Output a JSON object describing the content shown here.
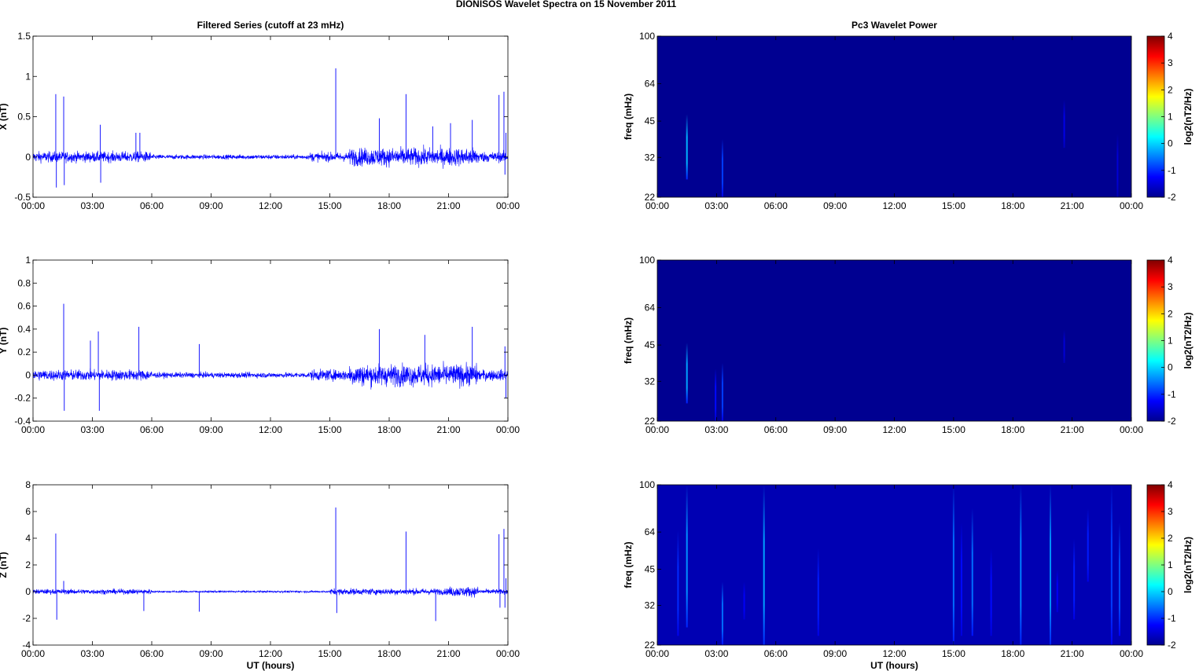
{
  "figure_title": "DIONISOS Wavelet Spectra on 15 November  2011",
  "chart_data": [
    {
      "type": "line",
      "title": "Filtered Series (cutoff at 23 mHz)",
      "ylabel": "X (nT)",
      "xlabel": "",
      "ylim": [
        -0.5,
        1.5
      ],
      "yticks": [
        "-0.5",
        "0",
        "0.5",
        "1",
        "1.5"
      ],
      "xticks": [
        "00:00",
        "03:00",
        "06:00",
        "09:00",
        "12:00",
        "15:00",
        "18:00",
        "21:00",
        "00:00"
      ],
      "xlim": [
        0,
        24
      ],
      "color": "#0000ff",
      "baseline_amp": 0.05,
      "activity": [
        {
          "from": 0.0,
          "to": 6.0,
          "amp": 0.07
        },
        {
          "from": 6.0,
          "to": 14.0,
          "amp": 0.03
        },
        {
          "from": 14.0,
          "to": 16.0,
          "amp": 0.06
        },
        {
          "from": 16.0,
          "to": 22.5,
          "amp": 0.12
        },
        {
          "from": 22.5,
          "to": 24.0,
          "amp": 0.07
        }
      ],
      "spikes": [
        {
          "t": 1.15,
          "v": 0.78
        },
        {
          "t": 1.18,
          "v": -0.38
        },
        {
          "t": 1.55,
          "v": 0.75
        },
        {
          "t": 1.58,
          "v": -0.35
        },
        {
          "t": 3.4,
          "v": 0.4
        },
        {
          "t": 3.42,
          "v": -0.32
        },
        {
          "t": 5.2,
          "v": 0.3
        },
        {
          "t": 5.4,
          "v": 0.3
        },
        {
          "t": 15.3,
          "v": 1.1
        },
        {
          "t": 17.5,
          "v": 0.48
        },
        {
          "t": 18.85,
          "v": 0.78
        },
        {
          "t": 20.2,
          "v": 0.38
        },
        {
          "t": 21.1,
          "v": 0.42
        },
        {
          "t": 22.2,
          "v": 0.46
        },
        {
          "t": 23.55,
          "v": 0.77
        },
        {
          "t": 23.8,
          "v": 0.81
        },
        {
          "t": 23.9,
          "v": 0.3
        },
        {
          "t": 23.85,
          "v": -0.22
        }
      ]
    },
    {
      "type": "heatmap",
      "title": "Pc3 Wavelet Power",
      "ylabel": "freq (mHz)",
      "xlabel": "",
      "yticks": [
        "22",
        "32",
        "45",
        "64",
        "100"
      ],
      "ytick_values": [
        22,
        32,
        45,
        64,
        100
      ],
      "yscale": "log",
      "xticks": [
        "00:00",
        "03:00",
        "06:00",
        "09:00",
        "12:00",
        "15:00",
        "18:00",
        "21:00",
        "00:00"
      ],
      "xlim": [
        0,
        24
      ],
      "colorbar_label": "log2(nT2/Hz)",
      "colorbar_ticks": [
        "-2",
        "-1",
        "0",
        "1",
        "2",
        "3",
        "4"
      ],
      "clim": [
        -2,
        4
      ],
      "background_level": -1.9,
      "bursts": [
        {
          "t": 1.5,
          "f_low": 26,
          "f_high": 48,
          "level": -0.2
        },
        {
          "t": 3.3,
          "f_low": 22,
          "f_high": 38,
          "level": -0.9
        },
        {
          "t": 20.6,
          "f_low": 35,
          "f_high": 55,
          "level": -1.4
        },
        {
          "t": 23.3,
          "f_low": 22,
          "f_high": 40,
          "level": -1.5
        }
      ]
    },
    {
      "type": "line",
      "title": "",
      "ylabel": "Y (nT)",
      "xlabel": "",
      "ylim": [
        -0.4,
        1.0
      ],
      "yticks": [
        "-0.4",
        "-0.2",
        "0",
        "0.2",
        "0.4",
        "0.6",
        "0.8",
        "1"
      ],
      "xticks": [
        "00:00",
        "03:00",
        "06:00",
        "09:00",
        "12:00",
        "15:00",
        "18:00",
        "21:00",
        "00:00"
      ],
      "xlim": [
        0,
        24
      ],
      "color": "#0000ff",
      "activity": [
        {
          "from": 0.0,
          "to": 6.0,
          "amp": 0.05
        },
        {
          "from": 6.0,
          "to": 14.0,
          "amp": 0.025
        },
        {
          "from": 14.0,
          "to": 16.0,
          "amp": 0.05
        },
        {
          "from": 16.0,
          "to": 22.5,
          "amp": 0.1
        },
        {
          "from": 22.5,
          "to": 24.0,
          "amp": 0.05
        }
      ],
      "spikes": [
        {
          "t": 1.55,
          "v": 0.62
        },
        {
          "t": 1.58,
          "v": -0.31
        },
        {
          "t": 3.3,
          "v": 0.38
        },
        {
          "t": 3.35,
          "v": -0.31
        },
        {
          "t": 2.9,
          "v": 0.3
        },
        {
          "t": 5.35,
          "v": 0.42
        },
        {
          "t": 8.4,
          "v": 0.27
        },
        {
          "t": 17.5,
          "v": 0.4
        },
        {
          "t": 19.8,
          "v": 0.35
        },
        {
          "t": 22.2,
          "v": 0.42
        },
        {
          "t": 23.85,
          "v": 0.25
        },
        {
          "t": 23.9,
          "v": -0.2
        }
      ]
    },
    {
      "type": "heatmap",
      "title": "",
      "ylabel": "freq (mHz)",
      "xlabel": "",
      "yticks": [
        "22",
        "32",
        "45",
        "64",
        "100"
      ],
      "ytick_values": [
        22,
        32,
        45,
        64,
        100
      ],
      "yscale": "log",
      "xticks": [
        "00:00",
        "03:00",
        "06:00",
        "09:00",
        "12:00",
        "15:00",
        "18:00",
        "21:00",
        "00:00"
      ],
      "xlim": [
        0,
        24
      ],
      "colorbar_label": "log2(nT2/Hz)",
      "colorbar_ticks": [
        "-2",
        "-1",
        "0",
        "1",
        "2",
        "3",
        "4"
      ],
      "clim": [
        -2,
        4
      ],
      "background_level": -1.9,
      "bursts": [
        {
          "t": 1.5,
          "f_low": 26,
          "f_high": 46,
          "level": -0.3
        },
        {
          "t": 2.95,
          "f_low": 22,
          "f_high": 36,
          "level": -1.2
        },
        {
          "t": 3.3,
          "f_low": 22,
          "f_high": 38,
          "level": -0.9
        },
        {
          "t": 20.6,
          "f_low": 38,
          "f_high": 52,
          "level": -1.5
        }
      ]
    },
    {
      "type": "line",
      "title": "",
      "ylabel": "Z (nT)",
      "xlabel": "UT (hours)",
      "ylim": [
        -4,
        8
      ],
      "yticks": [
        "-4",
        "-2",
        "0",
        "2",
        "4",
        "6",
        "8"
      ],
      "xticks": [
        "00:00",
        "03:00",
        "06:00",
        "09:00",
        "12:00",
        "15:00",
        "18:00",
        "21:00",
        "00:00"
      ],
      "xlim": [
        0,
        24
      ],
      "color": "#0000ff",
      "activity": [
        {
          "from": 0.0,
          "to": 6.0,
          "amp": 0.2
        },
        {
          "from": 6.0,
          "to": 15.0,
          "amp": 0.08
        },
        {
          "from": 15.0,
          "to": 21.0,
          "amp": 0.25
        },
        {
          "from": 21.0,
          "to": 22.5,
          "amp": 0.4
        },
        {
          "from": 22.5,
          "to": 24.0,
          "amp": 0.2
        }
      ],
      "spikes": [
        {
          "t": 1.15,
          "v": 4.35
        },
        {
          "t": 1.2,
          "v": -2.1
        },
        {
          "t": 1.55,
          "v": 0.8
        },
        {
          "t": 5.6,
          "v": -1.45
        },
        {
          "t": 8.4,
          "v": -1.5
        },
        {
          "t": 15.3,
          "v": 6.3
        },
        {
          "t": 15.35,
          "v": -1.6
        },
        {
          "t": 18.85,
          "v": 4.5
        },
        {
          "t": 20.35,
          "v": -2.2
        },
        {
          "t": 23.55,
          "v": 4.3
        },
        {
          "t": 23.6,
          "v": -1.2
        },
        {
          "t": 23.8,
          "v": 4.7
        },
        {
          "t": 23.85,
          "v": -1.2
        },
        {
          "t": 23.9,
          "v": 1.0
        }
      ]
    },
    {
      "type": "heatmap",
      "title": "",
      "ylabel": "freq (mHz)",
      "xlabel": "UT (hours)",
      "yticks": [
        "22",
        "32",
        "45",
        "64",
        "100"
      ],
      "ytick_values": [
        22,
        32,
        45,
        64,
        100
      ],
      "yscale": "log",
      "xticks": [
        "00:00",
        "03:00",
        "06:00",
        "09:00",
        "12:00",
        "15:00",
        "18:00",
        "21:00",
        "00:00"
      ],
      "xlim": [
        0,
        24
      ],
      "colorbar_label": "log2(nT2/Hz)",
      "colorbar_ticks": [
        "-2",
        "-1",
        "0",
        "1",
        "2",
        "3",
        "4"
      ],
      "clim": [
        -2,
        4
      ],
      "background_level": -1.7,
      "bursts": [
        {
          "t": 1.05,
          "f_low": 24,
          "f_high": 65,
          "level": -1.0
        },
        {
          "t": 1.5,
          "f_low": 26,
          "f_high": 100,
          "level": -0.4
        },
        {
          "t": 3.3,
          "f_low": 22,
          "f_high": 40,
          "level": -0.6
        },
        {
          "t": 4.4,
          "f_low": 28,
          "f_high": 40,
          "level": -1.3
        },
        {
          "t": 5.4,
          "f_low": 22,
          "f_high": 100,
          "level": -0.3
        },
        {
          "t": 8.15,
          "f_low": 24,
          "f_high": 55,
          "level": -1.1
        },
        {
          "t": 15.0,
          "f_low": 22,
          "f_high": 100,
          "level": -0.6
        },
        {
          "t": 15.4,
          "f_low": 24,
          "f_high": 70,
          "level": -1.2
        },
        {
          "t": 15.95,
          "f_low": 24,
          "f_high": 80,
          "level": -0.6
        },
        {
          "t": 16.9,
          "f_low": 24,
          "f_high": 55,
          "level": -1.2
        },
        {
          "t": 18.4,
          "f_low": 22,
          "f_high": 100,
          "level": -0.5
        },
        {
          "t": 19.9,
          "f_low": 22,
          "f_high": 100,
          "level": -0.4
        },
        {
          "t": 20.25,
          "f_low": 30,
          "f_high": 45,
          "level": -1.3
        },
        {
          "t": 21.1,
          "f_low": 28,
          "f_high": 60,
          "level": -1.1
        },
        {
          "t": 21.8,
          "f_low": 40,
          "f_high": 80,
          "level": -1.1
        },
        {
          "t": 23.0,
          "f_low": 22,
          "f_high": 100,
          "level": -0.9
        },
        {
          "t": 23.4,
          "f_low": 24,
          "f_high": 70,
          "level": -0.8
        }
      ]
    }
  ]
}
